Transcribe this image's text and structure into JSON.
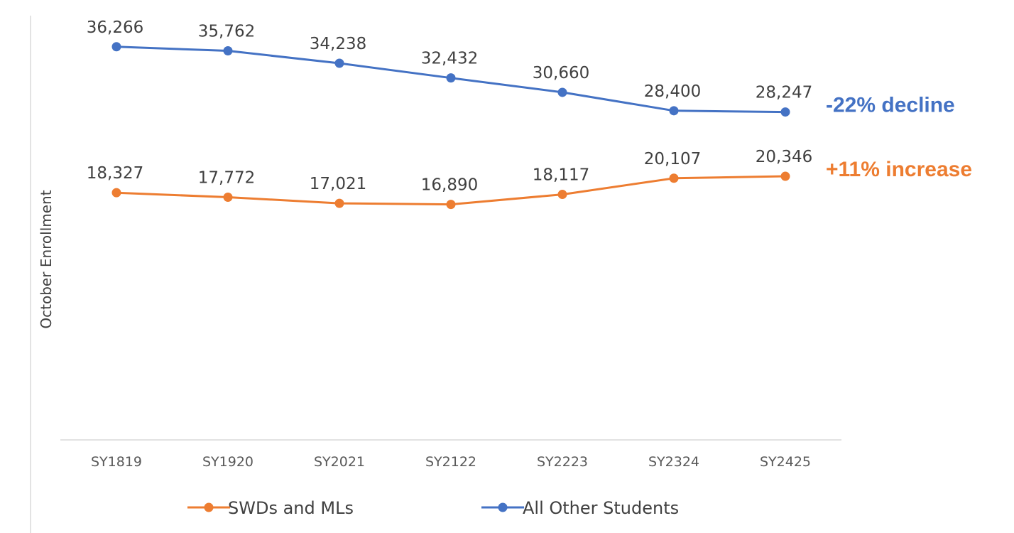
{
  "chart_data": {
    "type": "line",
    "title": "",
    "xlabel": "",
    "ylabel": "October Enrollment",
    "categories": [
      "SY1819",
      "SY1920",
      "SY2021",
      "SY2122",
      "SY2223",
      "SY2324",
      "SY2425"
    ],
    "ylim": [
      0,
      40000
    ],
    "grid": false,
    "legend_position": "bottom",
    "series": [
      {
        "name": "SWDs and MLs",
        "color": "#ED7D31",
        "values": [
          18327,
          17772,
          17021,
          16890,
          18117,
          20107,
          20346
        ],
        "labels": [
          "18,327",
          "17,772",
          "17,021",
          "16,890",
          "18,117",
          "20,107",
          "20,346"
        ]
      },
      {
        "name": "All Other Students",
        "color": "#4472C4",
        "values": [
          36266,
          35762,
          34238,
          32432,
          30660,
          28400,
          28247
        ],
        "labels": [
          "36,266",
          "35,762",
          "34,238",
          "32,432",
          "30,660",
          "28,400",
          "28,247"
        ]
      }
    ],
    "annotations": [
      {
        "text": "-22% decline",
        "series": "All Other Students",
        "color": "#4472C4"
      },
      {
        "text": "+11% increase",
        "series": "SWDs and MLs",
        "color": "#ED7D31"
      }
    ]
  }
}
